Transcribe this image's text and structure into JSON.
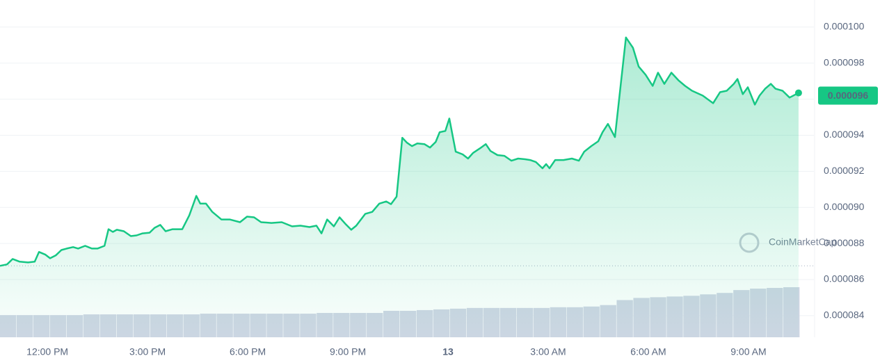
{
  "chart_data": {
    "type": "line",
    "x": [
      -1.42,
      -1.21,
      -1.04,
      -0.83,
      -0.58,
      -0.38,
      -0.25,
      -0.06,
      0.08,
      0.25,
      0.42,
      0.58,
      0.77,
      0.92,
      1.13,
      1.33,
      1.5,
      1.71,
      1.83,
      1.96,
      2.08,
      2.29,
      2.5,
      2.67,
      2.85,
      3.06,
      3.21,
      3.38,
      3.54,
      3.75,
      4.04,
      4.25,
      4.46,
      4.58,
      4.75,
      4.94,
      5.21,
      5.46,
      5.77,
      5.98,
      6.19,
      6.4,
      6.71,
      7.02,
      7.33,
      7.58,
      7.85,
      8.06,
      8.21,
      8.38,
      8.58,
      8.75,
      8.92,
      9.1,
      9.25,
      9.52,
      9.73,
      9.94,
      10.15,
      10.29,
      10.46,
      10.63,
      10.77,
      10.92,
      11.08,
      11.29,
      11.46,
      11.63,
      11.75,
      11.92,
      12.04,
      12.23,
      12.44,
      12.6,
      12.75,
      12.96,
      13.13,
      13.27,
      13.48,
      13.69,
      13.9,
      14.1,
      14.31,
      14.46,
      14.63,
      14.83,
      14.94,
      15.04,
      15.21,
      15.46,
      15.71,
      15.92,
      16.08,
      16.29,
      16.5,
      16.63,
      16.79,
      17,
      17.17,
      17.33,
      17.54,
      17.71,
      17.92,
      18.13,
      18.29,
      18.48,
      18.69,
      18.9,
      19.1,
      19.31,
      19.63,
      19.94,
      20.15,
      20.35,
      20.56,
      20.67,
      20.83,
      20.98,
      21.19,
      21.33,
      21.5,
      21.67,
      21.81,
      22.02,
      22.23,
      22.5
    ],
    "series": [
      {
        "color": "#16c784",
        "values": [
          8.676e-05,
          8.684e-05,
          8.714e-05,
          8.699e-05,
          8.695e-05,
          8.699e-05,
          8.753e-05,
          8.738e-05,
          8.718e-05,
          8.734e-05,
          8.764e-05,
          8.772e-05,
          8.78e-05,
          8.772e-05,
          8.787e-05,
          8.772e-05,
          8.772e-05,
          8.787e-05,
          8.879e-05,
          8.864e-05,
          8.876e-05,
          8.868e-05,
          8.841e-05,
          8.845e-05,
          8.856e-05,
          8.86e-05,
          8.887e-05,
          8.903e-05,
          8.868e-05,
          8.879e-05,
          8.879e-05,
          8.956e-05,
          9.064e-05,
          9.021e-05,
          9.021e-05,
          8.975e-05,
          8.933e-05,
          8.933e-05,
          8.918e-05,
          8.949e-05,
          8.945e-05,
          8.918e-05,
          8.914e-05,
          8.918e-05,
          8.895e-05,
          8.899e-05,
          8.891e-05,
          8.899e-05,
          8.856e-05,
          8.933e-05,
          8.895e-05,
          8.945e-05,
          8.91e-05,
          8.876e-05,
          8.899e-05,
          8.964e-05,
          8.975e-05,
          9.021e-05,
          9.033e-05,
          9.018e-05,
          9.06e-05,
          9.386e-05,
          9.359e-05,
          9.34e-05,
          9.355e-05,
          9.351e-05,
          9.332e-05,
          9.363e-05,
          9.417e-05,
          9.424e-05,
          9.493e-05,
          9.309e-05,
          9.294e-05,
          9.271e-05,
          9.302e-05,
          9.328e-05,
          9.351e-05,
          9.313e-05,
          9.29e-05,
          9.286e-05,
          9.259e-05,
          9.271e-05,
          9.267e-05,
          9.263e-05,
          9.252e-05,
          9.217e-05,
          9.24e-05,
          9.217e-05,
          9.263e-05,
          9.263e-05,
          9.271e-05,
          9.259e-05,
          9.309e-05,
          9.34e-05,
          9.367e-05,
          9.417e-05,
          9.463e-05,
          9.39e-05,
          9.674e-05,
          9.942e-05,
          9.885e-05,
          9.781e-05,
          9.735e-05,
          9.674e-05,
          9.747e-05,
          9.685e-05,
          9.747e-05,
          9.705e-05,
          9.674e-05,
          9.647e-05,
          9.62e-05,
          9.578e-05,
          9.639e-05,
          9.647e-05,
          9.685e-05,
          9.712e-05,
          9.628e-05,
          9.666e-05,
          9.57e-05,
          9.62e-05,
          9.658e-05,
          9.685e-05,
          9.658e-05,
          9.647e-05,
          9.609e-05,
          9.635e-05
        ]
      }
    ],
    "current": {
      "value": 9.62e-05,
      "label": "0.000096"
    },
    "volume": {
      "color": "#cfd6e4",
      "values": [
        31,
        31,
        31,
        31,
        31,
        32,
        32,
        32,
        32,
        32,
        32,
        32,
        33,
        33,
        33,
        33,
        33,
        33,
        33,
        34,
        34,
        34,
        34,
        37,
        37,
        38,
        39,
        40,
        41,
        41,
        41,
        41,
        41,
        42,
        42,
        43,
        45,
        52,
        55,
        56,
        57,
        58,
        60,
        62,
        66,
        68,
        69,
        70
      ]
    },
    "xlim": [
      -1.42,
      22.96
    ],
    "xticks": [
      {
        "value": 0,
        "label": "12:00 PM"
      },
      {
        "value": 3,
        "label": "3:00 PM"
      },
      {
        "value": 6,
        "label": "6:00 PM"
      },
      {
        "value": 9,
        "label": "9:00 PM"
      },
      {
        "value": 12,
        "label": "13"
      },
      {
        "value": 15,
        "label": "3:00 AM"
      },
      {
        "value": 18,
        "label": "6:00 AM"
      },
      {
        "value": 21,
        "label": "9:00 AM"
      }
    ],
    "ylim": [
      8.28e-05,
      0.0001015
    ],
    "yticks": [
      {
        "value": 8.4e-05,
        "label": "0.000084"
      },
      {
        "value": 8.6e-05,
        "label": "0.000086"
      },
      {
        "value": 8.8e-05,
        "label": "0.000088"
      },
      {
        "value": 9e-05,
        "label": "0.000090"
      },
      {
        "value": 9.2e-05,
        "label": "0.000092"
      },
      {
        "value": 9.4e-05,
        "label": "0.000094"
      },
      {
        "value": 9.6e-05,
        "label": "0.000096"
      },
      {
        "value": 9.8e-05,
        "label": "0.000098"
      },
      {
        "value": 0.0001,
        "label": "0.000100"
      }
    ],
    "grid": true,
    "watermark": "CoinMarketCap"
  }
}
